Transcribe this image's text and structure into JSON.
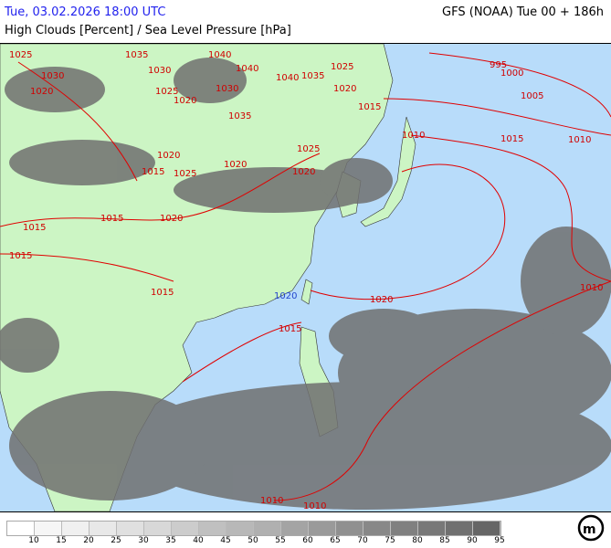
{
  "header": {
    "date": "Tue, 03.02.2026 18:00 UTC",
    "model": "GFS (NOAA) Tue 00 + 186h",
    "parameter": "High Clouds [Percent] / Sea Level Pressure [hPa]"
  },
  "colors": {
    "ocean": "#b8dcfa",
    "land": "#ccf5c4",
    "isobar": "#e00000",
    "cloud_dark": "#666666"
  },
  "legend": {
    "labels": [
      "10",
      "15",
      "20",
      "25",
      "30",
      "35",
      "40",
      "45",
      "50",
      "55",
      "60",
      "65",
      "70",
      "75",
      "80",
      "85",
      "90",
      "95"
    ],
    "colors": [
      "#ffffff",
      "#f6f6f6",
      "#f0f0f0",
      "#e8e8e8",
      "#e0e0e0",
      "#d8d8d8",
      "#cccccc",
      "#c0c0c0",
      "#b8b8b8",
      "#b0b0b0",
      "#a4a4a4",
      "#9a9a9a",
      "#909090",
      "#888888",
      "#808080",
      "#787878",
      "#707070",
      "#666666"
    ]
  },
  "isobar_labels": [
    {
      "t": "1025",
      "c": "r"
    },
    {
      "t": "1030",
      "c": "r"
    },
    {
      "t": "1020",
      "c": "r"
    },
    {
      "t": "1035",
      "c": "r"
    },
    {
      "t": "1030",
      "c": "r"
    },
    {
      "t": "1040",
      "c": "r"
    },
    {
      "t": "1040",
      "c": "r"
    },
    {
      "t": "1035",
      "c": "r"
    },
    {
      "t": "1025",
      "c": "r"
    },
    {
      "t": "995",
      "c": "r"
    },
    {
      "t": "1000",
      "c": "r"
    },
    {
      "t": "1005",
      "c": "r"
    },
    {
      "t": "1025",
      "c": "r"
    },
    {
      "t": "1020",
      "c": "r"
    },
    {
      "t": "1030",
      "c": "r"
    },
    {
      "t": "1040",
      "c": "r"
    },
    {
      "t": "1020",
      "c": "r"
    },
    {
      "t": "1015",
      "c": "r"
    },
    {
      "t": "1035",
      "c": "r"
    },
    {
      "t": "1010",
      "c": "r"
    },
    {
      "t": "1015",
      "c": "r"
    },
    {
      "t": "1010",
      "c": "r"
    },
    {
      "t": "1025",
      "c": "r"
    },
    {
      "t": "1020",
      "c": "r"
    },
    {
      "t": "1020",
      "c": "r"
    },
    {
      "t": "1015",
      "c": "r"
    },
    {
      "t": "1025",
      "c": "r"
    },
    {
      "t": "1020",
      "c": "r"
    },
    {
      "t": "1015",
      "c": "r"
    },
    {
      "t": "1015",
      "c": "r"
    },
    {
      "t": "1020",
      "c": "r"
    },
    {
      "t": "1015",
      "c": "r"
    },
    {
      "t": "1015",
      "c": "r"
    },
    {
      "t": "1020",
      "c": "b"
    },
    {
      "t": "1020",
      "c": "r"
    },
    {
      "t": "1010",
      "c": "r"
    },
    {
      "t": "1015",
      "c": "r"
    },
    {
      "t": "1010",
      "c": "r"
    },
    {
      "t": "1010",
      "c": "r"
    }
  ]
}
